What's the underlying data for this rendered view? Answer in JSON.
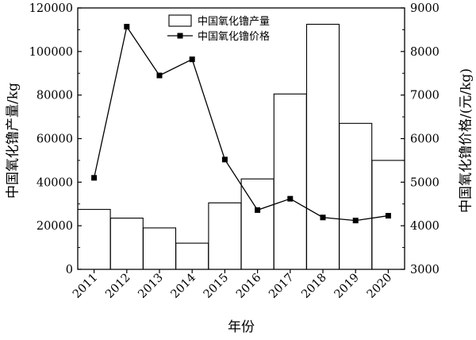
{
  "chart_data": {
    "type": "bar",
    "categories": [
      "2011",
      "2012",
      "2013",
      "2014",
      "2015",
      "2016",
      "2017",
      "2018",
      "2019",
      "2020"
    ],
    "xlabel": "年份",
    "series": [
      {
        "name": "中国氧化镥产量",
        "type": "bar",
        "axis": "left",
        "values": [
          27500,
          23500,
          19000,
          12000,
          30500,
          41500,
          80500,
          112500,
          67000,
          50000
        ]
      },
      {
        "name": "中国氧化镥价格",
        "type": "line",
        "axis": "right",
        "marker": "square",
        "values": [
          5100,
          8570,
          7450,
          7820,
          5520,
          4360,
          4620,
          4190,
          4120,
          4230
        ]
      }
    ],
    "y_left": {
      "label": "中国氧化镥产量/kg",
      "lim": [
        0,
        120000
      ],
      "ticks": [
        "0",
        "20000",
        "40000",
        "60000",
        "80000",
        "100000",
        "120000"
      ]
    },
    "y_right": {
      "label": "中国氧化镥价格/(元/kg)",
      "lim": [
        3000,
        9000
      ],
      "ticks": [
        "3000",
        "4000",
        "5000",
        "6000",
        "7000",
        "8000",
        "9000"
      ]
    },
    "legend_position": "top-center",
    "grid": false,
    "colors": {
      "bar_fill": "#ffffff",
      "stroke": "#000000"
    }
  }
}
